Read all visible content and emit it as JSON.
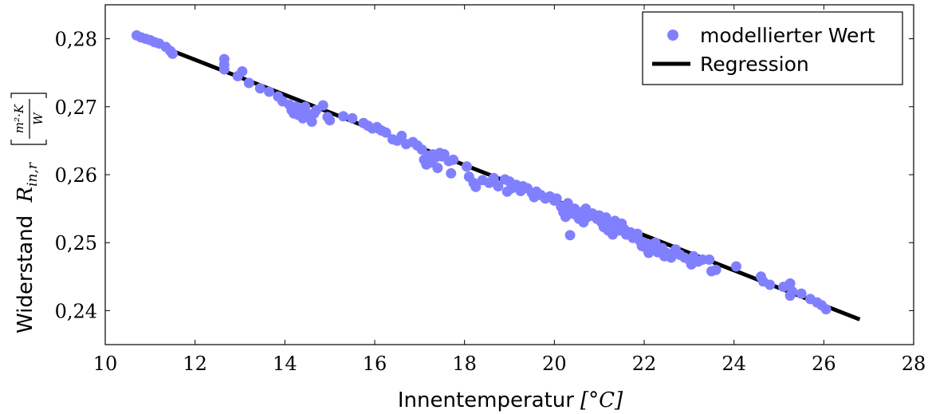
{
  "chart_data": {
    "type": "scatter",
    "xlabel": "Innentemperatur",
    "xlabel_unit": "[°C]",
    "ylabel": "Widerstand",
    "ylabel_symbol": "R",
    "ylabel_subscript": "in,r",
    "ylabel_unit_num": "m²·K",
    "ylabel_unit_den": "W",
    "xlim": [
      10,
      28
    ],
    "ylim": [
      0.235,
      0.285
    ],
    "xticks": [
      10,
      12,
      14,
      16,
      18,
      20,
      22,
      24,
      26,
      28
    ],
    "yticks": [
      0.24,
      0.25,
      0.26,
      0.27,
      0.28
    ],
    "xtick_labels": [
      "10",
      "12",
      "14",
      "16",
      "18",
      "20",
      "22",
      "24",
      "26",
      "28"
    ],
    "ytick_labels": [
      "0,24",
      "0,25",
      "0,26",
      "0,27",
      "0,28"
    ],
    "grid": false,
    "legend": {
      "position": "top-right",
      "entries": [
        "modellierter Wert",
        "Regression"
      ]
    },
    "series": [
      {
        "name": "modellierter Wert",
        "kind": "scatter",
        "color": "#8080ff",
        "points": [
          [
            10.7,
            0.2805
          ],
          [
            10.8,
            0.2802
          ],
          [
            10.9,
            0.28
          ],
          [
            11.0,
            0.2798
          ],
          [
            11.1,
            0.2795
          ],
          [
            11.2,
            0.2793
          ],
          [
            11.35,
            0.2788
          ],
          [
            11.45,
            0.2782
          ],
          [
            11.5,
            0.2778
          ],
          [
            12.65,
            0.277
          ],
          [
            12.65,
            0.2762
          ],
          [
            12.65,
            0.2755
          ],
          [
            12.95,
            0.2745
          ],
          [
            13.05,
            0.2752
          ],
          [
            13.2,
            0.2735
          ],
          [
            13.45,
            0.2727
          ],
          [
            13.65,
            0.2722
          ],
          [
            13.85,
            0.2715
          ],
          [
            13.95,
            0.2708
          ],
          [
            14.1,
            0.2703
          ],
          [
            14.15,
            0.2695
          ],
          [
            14.2,
            0.269
          ],
          [
            14.25,
            0.27
          ],
          [
            14.3,
            0.2688
          ],
          [
            14.35,
            0.2695
          ],
          [
            14.4,
            0.2683
          ],
          [
            14.45,
            0.27
          ],
          [
            14.5,
            0.269
          ],
          [
            14.55,
            0.2685
          ],
          [
            14.6,
            0.2678
          ],
          [
            14.65,
            0.269
          ],
          [
            14.7,
            0.2695
          ],
          [
            14.85,
            0.2702
          ],
          [
            14.95,
            0.2685
          ],
          [
            15.0,
            0.268
          ],
          [
            15.3,
            0.2686
          ],
          [
            15.5,
            0.2683
          ],
          [
            15.75,
            0.2676
          ],
          [
            15.85,
            0.2672
          ],
          [
            15.95,
            0.2668
          ],
          [
            16.05,
            0.267
          ],
          [
            16.15,
            0.2665
          ],
          [
            16.25,
            0.2662
          ],
          [
            16.4,
            0.2652
          ],
          [
            16.5,
            0.265
          ],
          [
            16.6,
            0.2657
          ],
          [
            16.7,
            0.2645
          ],
          [
            16.85,
            0.2648
          ],
          [
            16.95,
            0.2643
          ],
          [
            17.05,
            0.2637
          ],
          [
            17.1,
            0.2622
          ],
          [
            17.15,
            0.2615
          ],
          [
            17.2,
            0.2628
          ],
          [
            17.25,
            0.2618
          ],
          [
            17.3,
            0.263
          ],
          [
            17.35,
            0.2625
          ],
          [
            17.4,
            0.261
          ],
          [
            17.45,
            0.2632
          ],
          [
            17.5,
            0.2627
          ],
          [
            17.55,
            0.263
          ],
          [
            17.65,
            0.262
          ],
          [
            17.75,
            0.2622
          ],
          [
            17.7,
            0.2602
          ],
          [
            18.05,
            0.2612
          ],
          [
            18.1,
            0.2597
          ],
          [
            18.2,
            0.2588
          ],
          [
            18.25,
            0.2582
          ],
          [
            18.4,
            0.2592
          ],
          [
            18.55,
            0.2588
          ],
          [
            18.65,
            0.2595
          ],
          [
            18.75,
            0.2583
          ],
          [
            18.9,
            0.2593
          ],
          [
            18.95,
            0.2575
          ],
          [
            19.0,
            0.259
          ],
          [
            19.05,
            0.258
          ],
          [
            19.15,
            0.2585
          ],
          [
            19.25,
            0.2576
          ],
          [
            19.3,
            0.2583
          ],
          [
            19.4,
            0.258
          ],
          [
            19.5,
            0.2573
          ],
          [
            19.55,
            0.2567
          ],
          [
            19.6,
            0.2575
          ],
          [
            19.7,
            0.257
          ],
          [
            19.8,
            0.2565
          ],
          [
            19.9,
            0.2568
          ],
          [
            20.0,
            0.2562
          ],
          [
            20.05,
            0.2565
          ],
          [
            20.15,
            0.2553
          ],
          [
            20.2,
            0.2545
          ],
          [
            20.25,
            0.2538
          ],
          [
            20.3,
            0.2558
          ],
          [
            20.35,
            0.2548
          ],
          [
            20.4,
            0.2543
          ],
          [
            20.45,
            0.255
          ],
          [
            20.5,
            0.254
          ],
          [
            20.55,
            0.2535
          ],
          [
            20.6,
            0.2545
          ],
          [
            20.65,
            0.253
          ],
          [
            20.7,
            0.255
          ],
          [
            20.75,
            0.2538
          ],
          [
            20.85,
            0.2543
          ],
          [
            20.95,
            0.2535
          ],
          [
            21.0,
            0.254
          ],
          [
            21.05,
            0.253
          ],
          [
            21.1,
            0.2523
          ],
          [
            21.15,
            0.2537
          ],
          [
            21.2,
            0.2518
          ],
          [
            21.25,
            0.2528
          ],
          [
            21.3,
            0.2512
          ],
          [
            21.35,
            0.2532
          ],
          [
            21.4,
            0.2525
          ],
          [
            21.45,
            0.2518
          ],
          [
            21.5,
            0.2528
          ],
          [
            21.55,
            0.252
          ],
          [
            21.6,
            0.2512
          ],
          [
            21.7,
            0.2515
          ],
          [
            21.75,
            0.2507
          ],
          [
            21.85,
            0.2513
          ],
          [
            21.9,
            0.2503
          ],
          [
            21.95,
            0.2495
          ],
          [
            22.0,
            0.25
          ],
          [
            22.05,
            0.2492
          ],
          [
            22.1,
            0.2485
          ],
          [
            22.15,
            0.2497
          ],
          [
            22.2,
            0.249
          ],
          [
            22.25,
            0.25
          ],
          [
            22.3,
            0.2486
          ],
          [
            22.4,
            0.2492
          ],
          [
            22.45,
            0.248
          ],
          [
            22.5,
            0.2485
          ],
          [
            22.6,
            0.2478
          ],
          [
            22.7,
            0.249
          ],
          [
            22.8,
            0.2482
          ],
          [
            22.9,
            0.2478
          ],
          [
            23.0,
            0.2475
          ],
          [
            23.05,
            0.2468
          ],
          [
            23.1,
            0.248
          ],
          [
            23.2,
            0.2472
          ],
          [
            23.3,
            0.2475
          ],
          [
            23.45,
            0.2475
          ],
          [
            23.5,
            0.2458
          ],
          [
            23.6,
            0.246
          ],
          [
            24.05,
            0.2465
          ],
          [
            24.6,
            0.245
          ],
          [
            24.65,
            0.2443
          ],
          [
            24.8,
            0.2438
          ],
          [
            25.1,
            0.2435
          ],
          [
            25.25,
            0.244
          ],
          [
            25.3,
            0.2428
          ],
          [
            25.25,
            0.2422
          ],
          [
            25.5,
            0.2425
          ],
          [
            25.7,
            0.2417
          ],
          [
            25.85,
            0.2412
          ],
          [
            25.95,
            0.2408
          ],
          [
            26.05,
            0.2402
          ],
          [
            20.35,
            0.2511
          ]
        ]
      },
      {
        "name": "Regression",
        "kind": "line",
        "color": "#000000",
        "points": [
          [
            11.5,
            0.2782
          ],
          [
            26.8,
            0.2387
          ]
        ]
      }
    ]
  }
}
